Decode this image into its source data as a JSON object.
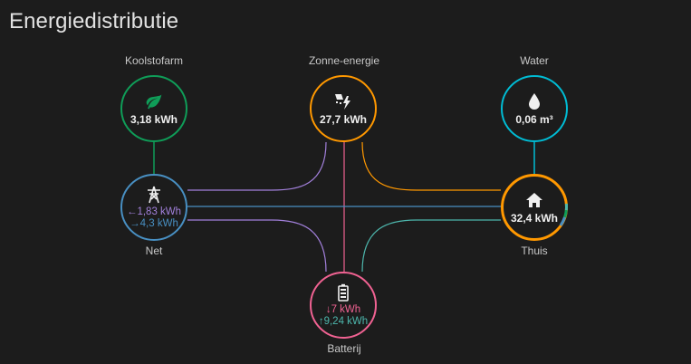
{
  "card": {
    "title": "Energiedistributie"
  },
  "nodes": {
    "fossil": {
      "label": "Koolstofarm",
      "value": "3,18 kWh",
      "icon": "leaf-icon",
      "color": "#0f9d58"
    },
    "solar": {
      "label": "Zonne-energie",
      "value": "27,7 kWh",
      "icon": "solar-power-icon",
      "color": "#ff9800"
    },
    "water": {
      "label": "Water",
      "value": "0,06 m³",
      "icon": "water-drop-icon",
      "color": "#00bcd4"
    },
    "grid": {
      "label": "Net",
      "import": "←1,83 kWh",
      "export": "→4,3 kWh",
      "icon": "transmission-tower-icon",
      "color": "#488fc2",
      "import_color": "#a280db",
      "export_color": "#488fc2"
    },
    "home": {
      "label": "Thuis",
      "value": "32,4 kWh",
      "icon": "home-icon"
    },
    "battery": {
      "label": "Batterij",
      "out": "↓7 kWh",
      "in": "↑9,24 kWh",
      "icon": "battery-icon",
      "color": "#f06292",
      "out_color": "#f06292",
      "in_color": "#4db6ac"
    }
  },
  "flow_colors": {
    "fossil_grid": "#0f9d58",
    "water_home": "#00bcd4",
    "solar_home": "#ff9800",
    "solar_grid": "#a280db",
    "solar_battery": "#f06292",
    "grid_home": "#488fc2",
    "grid_battery": "#a280db",
    "battery_home": "#4db6ac"
  }
}
